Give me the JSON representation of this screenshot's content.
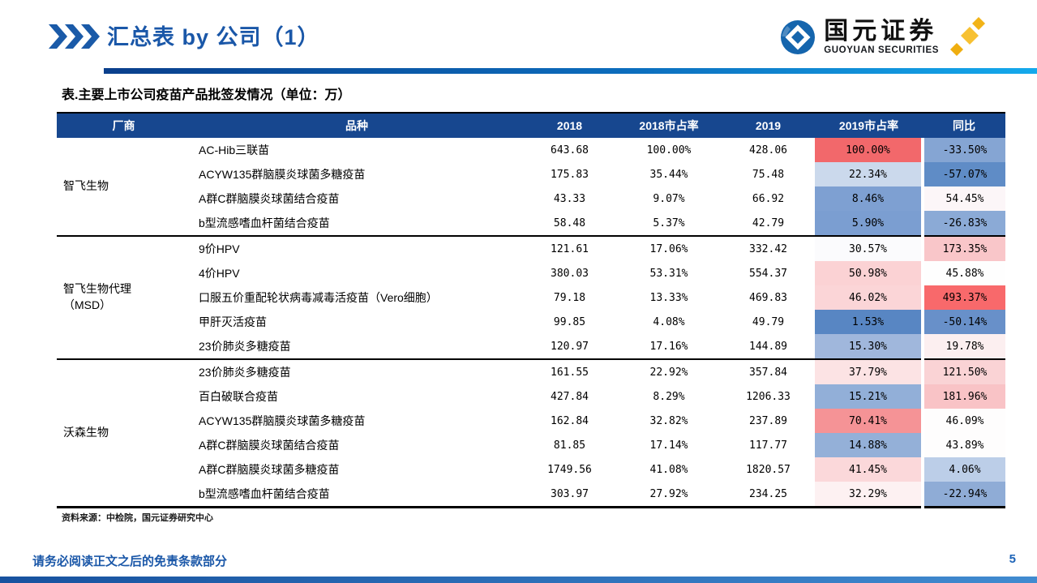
{
  "header": {
    "title": "汇总表 by 公司（1）",
    "accent_color": "#1A57A8",
    "logo": {
      "name_cn": "国元证券",
      "name_en": "GUOYUAN SECURITIES",
      "mark_color": "#1565AD",
      "sparkle_color": "#F2B317"
    }
  },
  "table": {
    "caption": "表.主要上市公司疫苗产品批签发情况（单位：万）",
    "columns": [
      "厂商",
      "品种",
      "2018",
      "2018市占率",
      "2019",
      "2019市占率",
      "同比"
    ],
    "header_bg": "#17478F",
    "groups": [
      {
        "vendor": "智飞生物",
        "rows": [
          {
            "product": "AC-Hib三联苗",
            "y2018": "643.68",
            "share2018": "100.00%",
            "y2019": "428.06",
            "share2019": "100.00%",
            "share2019_bg": "#F2686B",
            "yoy": "-33.50%",
            "yoy_bg": "#85A5D3"
          },
          {
            "product": "ACYW135群脑膜炎球菌多糖疫苗",
            "y2018": "175.83",
            "share2018": "35.44%",
            "y2019": "75.48",
            "share2019": "22.34%",
            "share2019_bg": "#CBD9EC",
            "yoy": "-57.07%",
            "yoy_bg": "#5F8CC6"
          },
          {
            "product": "A群C群脑膜炎球菌结合疫苗",
            "y2018": "43.33",
            "share2018": "9.07%",
            "y2019": "66.92",
            "share2019": "8.46%",
            "share2019_bg": "#7EA0D2",
            "yoy": "54.45%",
            "yoy_bg": "#FCF6F8"
          },
          {
            "product": "b型流感嗜血杆菌结合疫苗",
            "y2018": "58.48",
            "share2018": "5.37%",
            "y2019": "42.79",
            "share2019": "5.90%",
            "share2019_bg": "#7B9ED1",
            "yoy": "-26.83%",
            "yoy_bg": "#8BAAD6"
          }
        ]
      },
      {
        "vendor": "智飞生物代理\n（MSD）",
        "rows": [
          {
            "product": "9价HPV",
            "y2018": "121.61",
            "share2018": "17.06%",
            "y2019": "332.42",
            "share2019": "30.57%",
            "share2019_bg": "#FBFBFD",
            "yoy": "173.35%",
            "yoy_bg": "#F9C6C9"
          },
          {
            "product": "4价HPV",
            "y2018": "380.03",
            "share2018": "53.31%",
            "y2019": "554.37",
            "share2019": "50.98%",
            "share2019_bg": "#FBD2D4",
            "yoy": "45.88%",
            "yoy_bg": "#FEFEFE"
          },
          {
            "product": "口服五价重配轮状病毒减毒活疫苗（Vero细胞）",
            "y2018": "79.18",
            "share2018": "13.33%",
            "y2019": "469.83",
            "share2019": "46.02%",
            "share2019_bg": "#FBD5D7",
            "yoy": "493.37%",
            "yoy_bg": "#F8696B"
          },
          {
            "product": "甲肝灭活疫苗",
            "y2018": "99.85",
            "share2018": "4.08%",
            "y2019": "49.79",
            "share2019": "1.53%",
            "share2019_bg": "#5886C3",
            "yoy": "-50.14%",
            "yoy_bg": "#6890C9"
          },
          {
            "product": "23价肺炎多糖疫苗",
            "y2018": "120.97",
            "share2018": "17.16%",
            "y2019": "144.89",
            "share2019": "15.30%",
            "share2019_bg": "#A0B7DC",
            "yoy": "19.78%",
            "yoy_bg": "#FCEFF0"
          }
        ]
      },
      {
        "vendor": "沃森生物",
        "rows": [
          {
            "product": "23价肺炎多糖疫苗",
            "y2018": "161.55",
            "share2018": "22.92%",
            "y2019": "357.84",
            "share2019": "37.79%",
            "share2019_bg": "#FCE3E4",
            "yoy": "121.50%",
            "yoy_bg": "#FAD3D5"
          },
          {
            "product": "百白破联合疫苗",
            "y2018": "427.84",
            "share2018": "8.29%",
            "y2019": "1206.33",
            "share2019": "15.21%",
            "share2019_bg": "#92AFD8",
            "yoy": "181.96%",
            "yoy_bg": "#F9C3C6"
          },
          {
            "product": "ACYW135群脑膜炎球菌多糖疫苗",
            "y2018": "162.84",
            "share2018": "32.82%",
            "y2019": "237.89",
            "share2019": "70.41%",
            "share2019_bg": "#F59396",
            "yoy": "46.09%",
            "yoy_bg": "#FEFDFD"
          },
          {
            "product": "A群C群脑膜炎球菌结合疫苗",
            "y2018": "81.85",
            "share2018": "17.14%",
            "y2019": "117.77",
            "share2019": "14.88%",
            "share2019_bg": "#94B0D8",
            "yoy": "43.89%",
            "yoy_bg": "#FEFDFD"
          },
          {
            "product": "A群C群脑膜炎球菌多糖疫苗",
            "y2018": "1749.56",
            "share2018": "41.08%",
            "y2019": "1820.57",
            "share2019": "41.45%",
            "share2019_bg": "#FBD8DA",
            "yoy": "4.06%",
            "yoy_bg": "#BCCEE8"
          },
          {
            "product": "b型流感嗜血杆菌结合疫苗",
            "y2018": "303.97",
            "share2018": "27.92%",
            "y2019": "234.25",
            "share2019": "32.29%",
            "share2019_bg": "#FDF1F2",
            "yoy": "-22.94%",
            "yoy_bg": "#8FACD6"
          }
        ]
      }
    ],
    "source": "资料来源：中检院，国元证券研究中心"
  },
  "footer": {
    "disclaimer": "请务必阅读正文之后的免责条款部分",
    "page_number": "5"
  }
}
